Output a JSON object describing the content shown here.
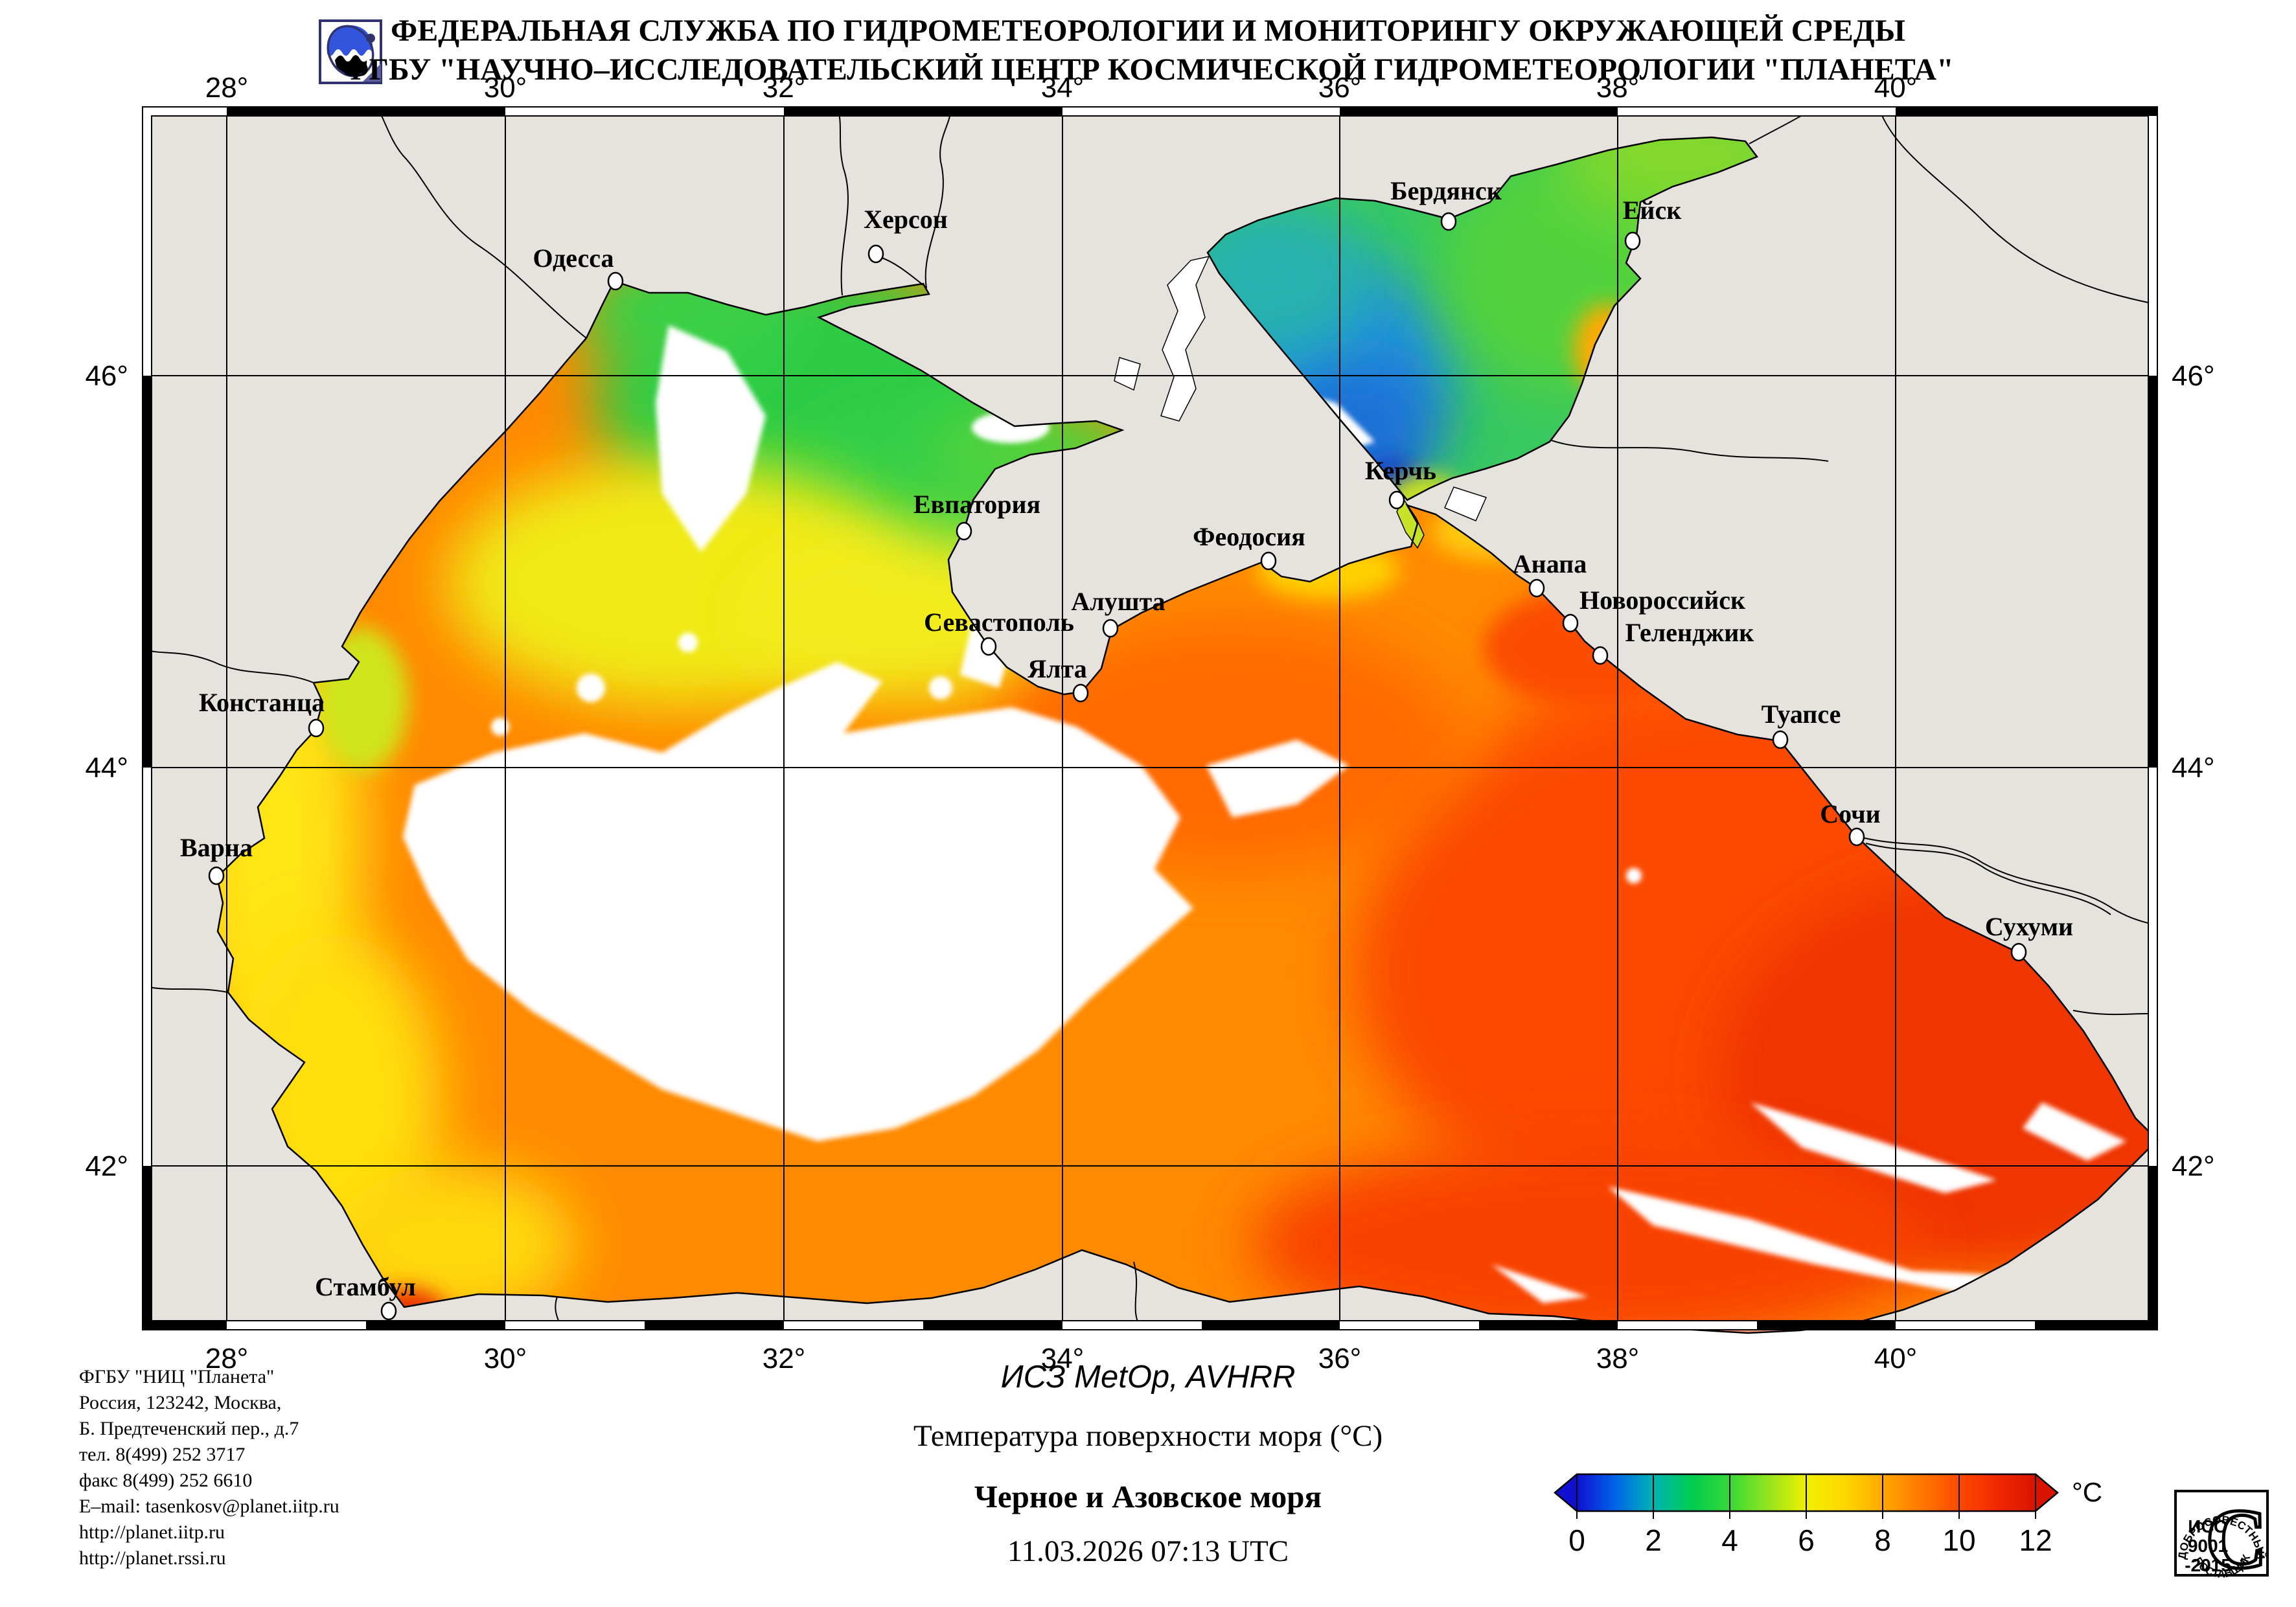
{
  "header": {
    "line1": "ФЕДЕРАЛЬНАЯ СЛУЖБА ПО ГИДРОМЕТЕОРОЛОГИИ И МОНИТОРИНГУ ОКРУЖАЮЩЕЙ СРЕДЫ",
    "line2": "ФГБУ \"НАУЧНО–ИССЛЕДОВАТЕЛЬСКИЙ ЦЕНТР КОСМИЧЕСКОЙ ГИДРОМЕТЕОРОЛОГИИ \"ПЛАНЕТА\""
  },
  "map": {
    "lon_labels": [
      "28°",
      "30°",
      "32°",
      "34°",
      "36°",
      "38°",
      "40°"
    ],
    "lat_labels": [
      "46°",
      "44°",
      "42°"
    ],
    "cities": [
      {
        "name": "Одесса",
        "dot": [
          950,
          434
        ],
        "label": [
          885,
          412
        ]
      },
      {
        "name": "Херсон",
        "dot": [
          1352,
          392
        ],
        "label": [
          1398,
          352
        ]
      },
      {
        "name": "Бердянск",
        "dot": [
          2236,
          342
        ],
        "label": [
          2232,
          308
        ]
      },
      {
        "name": "Ейск",
        "dot": [
          2520,
          372
        ],
        "label": [
          2550,
          338
        ]
      },
      {
        "name": "Керчь",
        "dot": [
          2156,
          772
        ],
        "label": [
          2162,
          740
        ]
      },
      {
        "name": "Евпатория",
        "dot": [
          1488,
          820
        ],
        "label": [
          1508,
          792
        ]
      },
      {
        "name": "Феодосия",
        "dot": [
          1958,
          866
        ],
        "label": [
          1928,
          842
        ]
      },
      {
        "name": "Анапа",
        "dot": [
          2372,
          908
        ],
        "label": [
          2392,
          884
        ]
      },
      {
        "name": "Новороссийск",
        "dot": [
          2424,
          962
        ],
        "label": [
          2566,
          940
        ]
      },
      {
        "name": "Геленджик",
        "dot": [
          2470,
          1012
        ],
        "label": [
          2608,
          990
        ]
      },
      {
        "name": "Севастополь",
        "dot": [
          1526,
          998
        ],
        "label": [
          1542,
          974
        ]
      },
      {
        "name": "Алушта",
        "dot": [
          1714,
          970
        ],
        "label": [
          1726,
          942
        ]
      },
      {
        "name": "Ялта",
        "dot": [
          1668,
          1070
        ],
        "label": [
          1632,
          1046
        ]
      },
      {
        "name": "Туапсе",
        "dot": [
          2748,
          1142
        ],
        "label": [
          2780,
          1116
        ]
      },
      {
        "name": "Сочи",
        "dot": [
          2866,
          1292
        ],
        "label": [
          2856,
          1270
        ]
      },
      {
        "name": "Сухуми",
        "dot": [
          3116,
          1470
        ],
        "label": [
          3132,
          1444
        ]
      },
      {
        "name": "Констанца",
        "dot": [
          488,
          1124
        ],
        "label": [
          404,
          1098
        ]
      },
      {
        "name": "Варна",
        "dot": [
          334,
          1352
        ],
        "label": [
          334,
          1322
        ]
      },
      {
        "name": "Стамбул",
        "dot": [
          600,
          2024
        ],
        "label": [
          564,
          2000
        ]
      }
    ]
  },
  "colorbar": {
    "ticks": [
      "0",
      "2",
      "4",
      "6",
      "8",
      "10",
      "12"
    ],
    "unit": "°C",
    "stops": [
      "#1010d0",
      "#0064e8",
      "#00b4b4",
      "#00cc50",
      "#38d838",
      "#94e420",
      "#f0f000",
      "#ffd800",
      "#ffa800",
      "#ff7800",
      "#ff4a00",
      "#f02800",
      "#d81400"
    ]
  },
  "footer": {
    "org_lines": [
      "ФГБУ \"НИЦ \"Планета\"",
      "Россия, 123242, Москва,",
      "Б. Предтеченский пер., д.7",
      "тел. 8(499) 252 3717",
      "факс 8(499) 252 6610",
      "E–mail: tasenkosv@planet.iitp.ru",
      "http://planet.iitp.ru",
      "http://planet.rssi.ru"
    ],
    "satellite": "ИСЗ MetOp, AVHRR",
    "product": "Температура поверхности моря (°C)",
    "region": "Черное и Азовское моря",
    "datetime": "11.03.2026 07:13 UTC"
  },
  "stamp": {
    "top": "ДОБРОСОВЕСТНЫЙ",
    "letter": "С",
    "line1": "ИСО",
    "line2": "9001",
    "line3": "-2015",
    "bottom": "ПОСТАВЩИК"
  },
  "colors": {
    "land": "#e6e2dd",
    "cloud": "#ffffff",
    "sea_base": "#ff8a00",
    "azov_base": "#38c860",
    "logo_blue": "#3355dd",
    "logo_dark": "#32326e"
  }
}
